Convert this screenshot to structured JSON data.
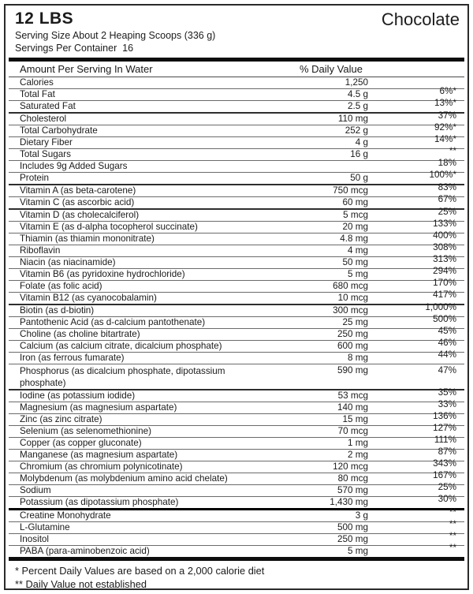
{
  "header": {
    "weight": "12 LBS",
    "flavor": "Chocolate",
    "serving_size": "Serving Size About 2 Heaping Scoops (336 g)",
    "servings_per_container": "Servings Per Container  16"
  },
  "table": {
    "col_amount_header": "Amount Per Serving In Water",
    "col_dv_header": "% Daily Value",
    "rows": [
      {
        "name": "Calories",
        "amount": "1,250",
        "dv": ""
      },
      {
        "name": "Total Fat",
        "amount": "4.5 g",
        "dv": "6%*"
      },
      {
        "name": "Saturated Fat",
        "amount": "2.5 g",
        "dv": "13%*"
      },
      {
        "name": "Cholesterol",
        "amount": "110 mg",
        "dv": "37%",
        "sep": "medium"
      },
      {
        "name": "Total Carbohydrate",
        "amount": "252 g",
        "dv": "92%*"
      },
      {
        "name": "Dietary Fiber",
        "amount": "4 g",
        "dv": "14%*"
      },
      {
        "name": "Total Sugars",
        "amount": "16 g",
        "dv": "**"
      },
      {
        "name": "Includes 9g Added Sugars",
        "amount": "",
        "dv": "18%"
      },
      {
        "name": "Protein",
        "amount": "50 g",
        "dv": "100%*"
      },
      {
        "name": "Vitamin A (as beta-carotene)",
        "amount": "750 mcg",
        "dv": "83%",
        "sep": "medium"
      },
      {
        "name": "Vitamin C (as ascorbic acid)",
        "amount": "60 mg",
        "dv": "67%"
      },
      {
        "name": "Vitamin D (as cholecalciferol)",
        "amount": "5 mcg",
        "dv": "25%",
        "sep": "medium"
      },
      {
        "name": "Vitamin E (as d-alpha tocopherol succinate)",
        "amount": "20 mg",
        "dv": "133%"
      },
      {
        "name": "Thiamin (as thiamin mononitrate)",
        "amount": "4.8 mg",
        "dv": "400%"
      },
      {
        "name": "Riboflavin",
        "amount": "4 mg",
        "dv": "308%"
      },
      {
        "name": "Niacin (as niacinamide)",
        "amount": "50 mg",
        "dv": "313%"
      },
      {
        "name": "Vitamin B6 (as pyridoxine hydrochloride)",
        "amount": "5 mg",
        "dv": "294%"
      },
      {
        "name": "Folate (as folic acid)",
        "amount": "680 mcg",
        "dv": "170%"
      },
      {
        "name": "Vitamin B12 (as cyanocobalamin)",
        "amount": "10 mcg",
        "dv": "417%"
      },
      {
        "name": "Biotin (as d-biotin)",
        "amount": "300 mcg",
        "dv": "1,000%",
        "sep": "medium"
      },
      {
        "name": "Pantothenic Acid (as d-calcium pantothenate)",
        "amount": "25 mg",
        "dv": "500%"
      },
      {
        "name": "Choline (as choline bitartrate)",
        "amount": "250 mg",
        "dv": "45%"
      },
      {
        "name": "Calcium (as calcium citrate, dicalcium phosphate)",
        "amount": "600 mg",
        "dv": "46%"
      },
      {
        "name": "Iron (as ferrous fumarate)",
        "amount": "8 mg",
        "dv": "44%"
      },
      {
        "name": "Phosphorus (as dicalcium phosphate, dipotassium phosphate)",
        "amount": "590 mg",
        "dv": "47%",
        "double": true
      },
      {
        "name": "Iodine (as potassium iodide)",
        "amount": "53 mcg",
        "dv": "35%",
        "sep": "medium"
      },
      {
        "name": "Magnesium (as magnesium aspartate)",
        "amount": "140 mg",
        "dv": "33%"
      },
      {
        "name": "Zinc (as zinc citrate)",
        "amount": "15 mg",
        "dv": "136%"
      },
      {
        "name": "Selenium (as selenomethionine)",
        "amount": "70 mcg",
        "dv": "127%"
      },
      {
        "name": "Copper (as copper gluconate)",
        "amount": "1 mg",
        "dv": "111%"
      },
      {
        "name": "Manganese (as magnesium aspartate)",
        "amount": "2 mg",
        "dv": "87%"
      },
      {
        "name": "Chromium (as chromium polynicotinate)",
        "amount": "120 mcg",
        "dv": "343%"
      },
      {
        "name": "Molybdenum (as molybdenium amino acid chelate)",
        "amount": "80 mcg",
        "dv": "167%"
      },
      {
        "name": "Sodium",
        "amount": "570 mg",
        "dv": "25%"
      },
      {
        "name": "Potassium (as dipotassium phosphate)",
        "amount": "1,430 mg",
        "dv": "30%"
      },
      {
        "name": "Creatine Monohydrate",
        "amount": "3 g",
        "dv": "**",
        "sep": "thick"
      },
      {
        "name": "L-Glutamine",
        "amount": "500 mg",
        "dv": "**"
      },
      {
        "name": "Inositol",
        "amount": "250 mg",
        "dv": "**"
      },
      {
        "name": "PABA (para-aminobenzoic acid)",
        "amount": "5 mg",
        "dv": "**"
      }
    ]
  },
  "footnotes": [
    "* Percent Daily Values are based on a 2,000 calorie diet",
    "** Daily Value not established"
  ]
}
